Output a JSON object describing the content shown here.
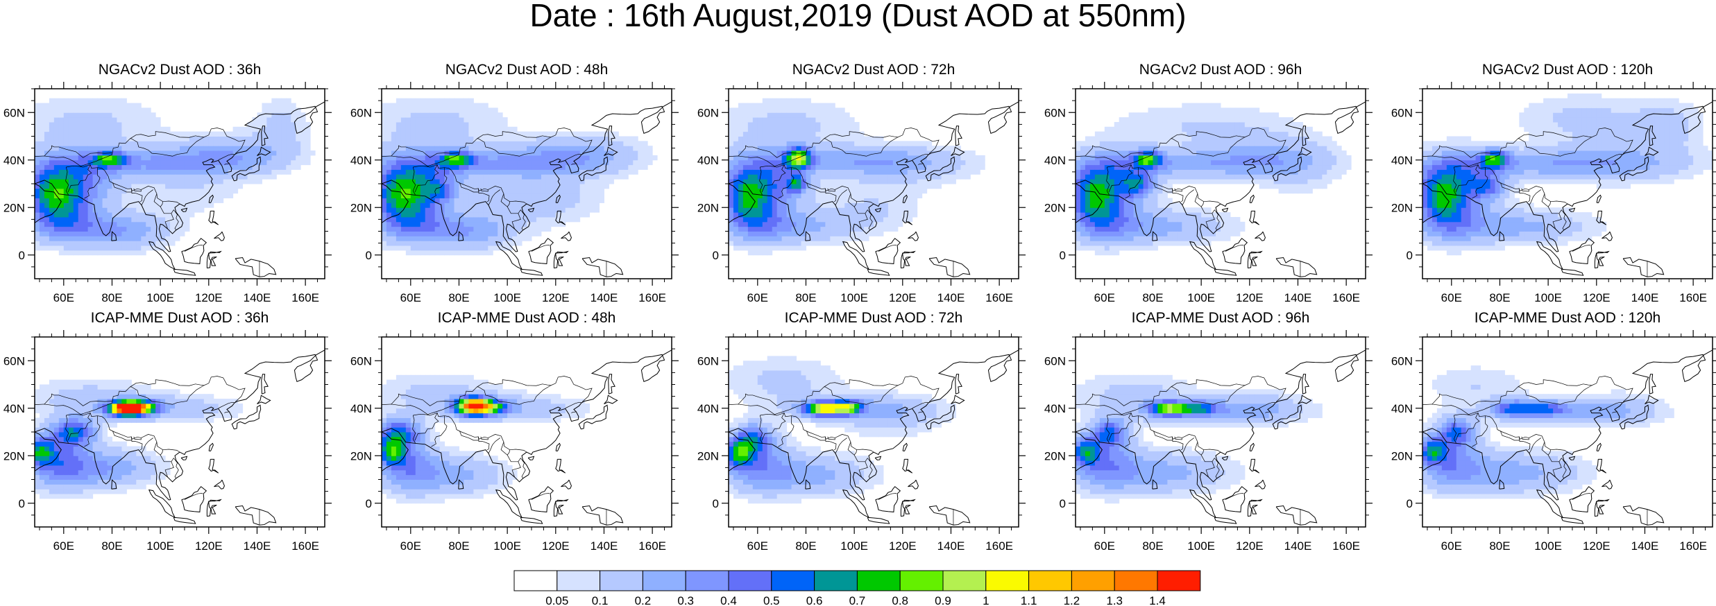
{
  "figure": {
    "title": "Date : 16th August,2019 (Dust AOD at 550nm)"
  },
  "map_axes": {
    "lat_labels": [
      "60N",
      "40N",
      "20N",
      "0"
    ],
    "lat_values": [
      60,
      40,
      20,
      0
    ],
    "lon_labels": [
      "60E",
      "80E",
      "100E",
      "120E",
      "140E",
      "160E"
    ],
    "lon_values": [
      60,
      80,
      100,
      120,
      140,
      160
    ],
    "lon_range": [
      48,
      168
    ],
    "lat_range": [
      -10,
      70
    ]
  },
  "panels": [
    {
      "title": "NGACv2 Dust AOD : 36h",
      "model": "ngac",
      "lead": 36
    },
    {
      "title": "NGACv2 Dust AOD : 48h",
      "model": "ngac",
      "lead": 48
    },
    {
      "title": "NGACv2 Dust AOD : 72h",
      "model": "ngac",
      "lead": 72
    },
    {
      "title": "NGACv2 Dust AOD : 96h",
      "model": "ngac",
      "lead": 96
    },
    {
      "title": "NGACv2 Dust AOD : 120h",
      "model": "ngac",
      "lead": 120
    },
    {
      "title": "ICAP-MME Dust AOD : 36h",
      "model": "icap",
      "lead": 36
    },
    {
      "title": "ICAP-MME Dust AOD : 48h",
      "model": "icap",
      "lead": 48
    },
    {
      "title": "ICAP-MME Dust AOD : 72h",
      "model": "icap",
      "lead": 72
    },
    {
      "title": "ICAP-MME Dust AOD : 96h",
      "model": "icap",
      "lead": 96
    },
    {
      "title": "ICAP-MME Dust AOD : 120h",
      "model": "icap",
      "lead": 120
    }
  ],
  "colorbar": {
    "labels": [
      "0.05",
      "0.1",
      "0.2",
      "0.3",
      "0.4",
      "0.5",
      "0.6",
      "0.7",
      "0.8",
      "0.9",
      "1",
      "1.1",
      "1.2",
      "1.3",
      "1.4"
    ],
    "colors": [
      "#ffffff",
      "#d6e2ff",
      "#b5c9ff",
      "#8fb0ff",
      "#7f96ff",
      "#6370f8",
      "#0064f8",
      "#009696",
      "#00c800",
      "#64f000",
      "#b4f050",
      "#fafa00",
      "#ffc800",
      "#ffa000",
      "#ff7800",
      "#ff1e00"
    ]
  }
}
